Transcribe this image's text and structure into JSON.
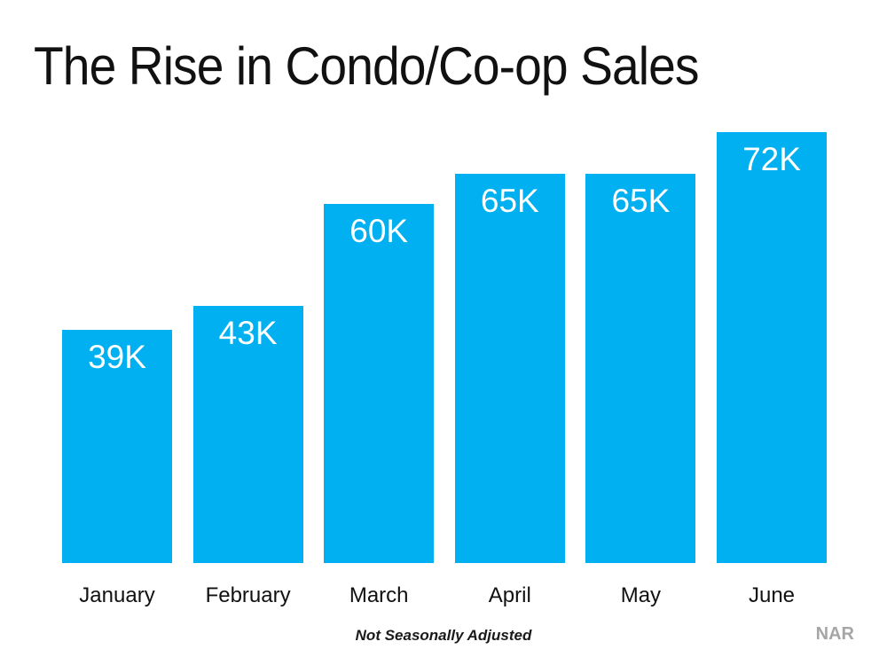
{
  "chart_data": {
    "type": "bar",
    "title": "The Rise in Condo/Co-op Sales",
    "categories": [
      "January",
      "February",
      "March",
      "April",
      "May",
      "June"
    ],
    "values": [
      39000,
      43000,
      60000,
      65000,
      65000,
      72000
    ],
    "value_labels": [
      "39K",
      "43K",
      "60K",
      "65K",
      "65K",
      "72K"
    ],
    "xlabel": "",
    "ylabel": "",
    "ylim": [
      0,
      75000
    ],
    "grid": false,
    "legend": false,
    "bar_color": "#00B0F0",
    "value_label_color": "#FFFFFF",
    "footnote": "Not Seasonally Adjusted",
    "source": "NAR"
  }
}
